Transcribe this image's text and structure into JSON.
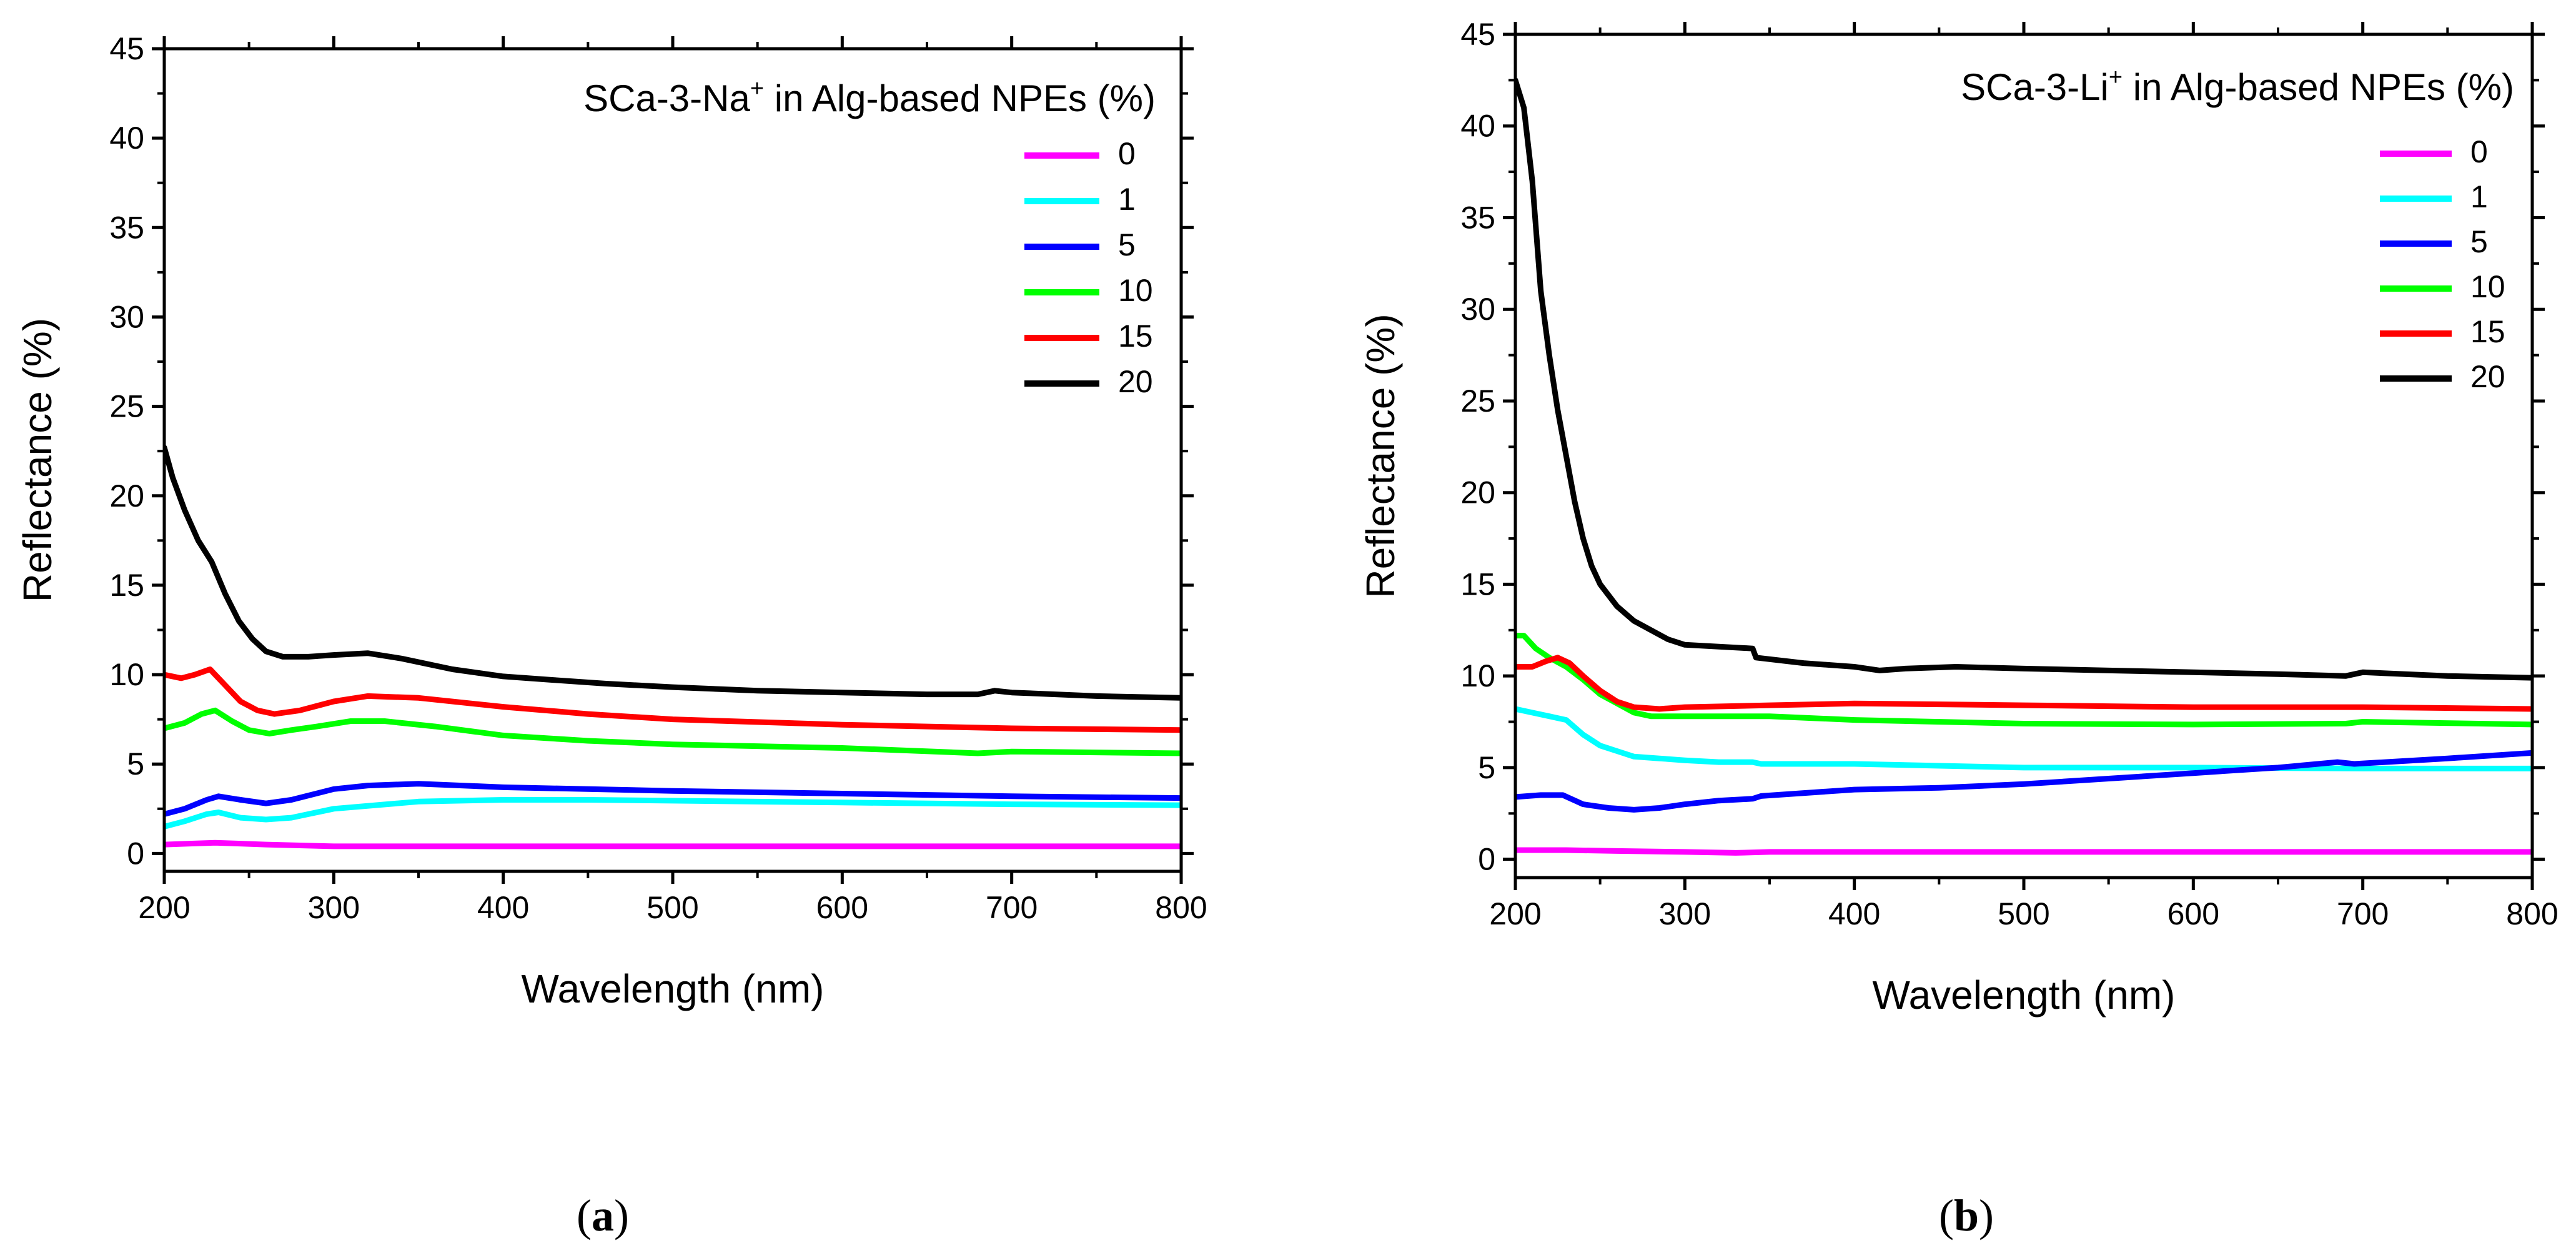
{
  "chart_data": [
    {
      "type": "line",
      "panel_label": "a",
      "title": "SCa-3-Na",
      "title_superscript": "+",
      "title_suffix": " in Alg-based NPEs (%)",
      "xlabel": "Wavelength (nm)",
      "ylabel": "Reflectance (%)",
      "xlim": [
        200,
        800
      ],
      "ylim": [
        -1,
        45
      ],
      "xticks": [
        200,
        300,
        400,
        500,
        600,
        700,
        800
      ],
      "yticks": [
        0,
        5,
        10,
        15,
        20,
        25,
        30,
        35,
        40,
        45
      ],
      "legend_position": "top-right",
      "series": [
        {
          "name": "0",
          "color": "#ff00ff",
          "x": [
            200,
            215,
            230,
            245,
            260,
            300,
            350,
            400,
            500,
            600,
            700,
            800
          ],
          "y": [
            0.5,
            0.55,
            0.6,
            0.55,
            0.5,
            0.4,
            0.4,
            0.4,
            0.4,
            0.4,
            0.4,
            0.4
          ]
        },
        {
          "name": "1",
          "color": "#00ffff",
          "x": [
            200,
            212,
            225,
            232,
            245,
            260,
            275,
            300,
            350,
            400,
            450,
            500,
            600,
            700,
            800
          ],
          "y": [
            1.5,
            1.8,
            2.2,
            2.3,
            2.0,
            1.9,
            2.0,
            2.5,
            2.9,
            3.0,
            3.0,
            2.95,
            2.85,
            2.75,
            2.7
          ]
        },
        {
          "name": "5",
          "color": "#0000ff",
          "x": [
            200,
            212,
            225,
            232,
            245,
            260,
            275,
            300,
            320,
            350,
            400,
            500,
            600,
            700,
            800
          ],
          "y": [
            2.2,
            2.5,
            3.0,
            3.2,
            3.0,
            2.8,
            3.0,
            3.6,
            3.8,
            3.9,
            3.7,
            3.5,
            3.35,
            3.2,
            3.1
          ]
        },
        {
          "name": "10",
          "color": "#00ff00",
          "x": [
            200,
            212,
            222,
            230,
            240,
            250,
            262,
            275,
            290,
            310,
            330,
            360,
            400,
            450,
            500,
            600,
            680,
            700,
            800
          ],
          "y": [
            7.0,
            7.3,
            7.8,
            8.0,
            7.4,
            6.9,
            6.7,
            6.9,
            7.1,
            7.4,
            7.4,
            7.1,
            6.6,
            6.3,
            6.1,
            5.9,
            5.6,
            5.7,
            5.6
          ]
        },
        {
          "name": "15",
          "color": "#ff0000",
          "x": [
            200,
            210,
            218,
            227,
            235,
            245,
            255,
            265,
            280,
            300,
            320,
            350,
            400,
            450,
            500,
            600,
            700,
            800
          ],
          "y": [
            10.0,
            9.8,
            10.0,
            10.3,
            9.5,
            8.5,
            8.0,
            7.8,
            8.0,
            8.5,
            8.8,
            8.7,
            8.2,
            7.8,
            7.5,
            7.2,
            7.0,
            6.9
          ]
        },
        {
          "name": "20",
          "color": "#000000",
          "x": [
            200,
            205,
            212,
            220,
            228,
            236,
            244,
            252,
            260,
            270,
            285,
            300,
            320,
            340,
            370,
            400,
            430,
            460,
            500,
            550,
            600,
            650,
            680,
            690,
            700,
            750,
            800
          ],
          "y": [
            22.7,
            21.0,
            19.2,
            17.5,
            16.3,
            14.5,
            13.0,
            12.0,
            11.3,
            11.0,
            11.0,
            11.1,
            11.2,
            10.9,
            10.3,
            9.9,
            9.7,
            9.5,
            9.3,
            9.1,
            9.0,
            8.9,
            8.9,
            9.1,
            9.0,
            8.8,
            8.7
          ]
        }
      ]
    },
    {
      "type": "line",
      "panel_label": "b",
      "title": "SCa-3-Li",
      "title_superscript": "+",
      "title_suffix": " in Alg-based NPEs (%)",
      "xlabel": "Wavelength (nm)",
      "ylabel": "Reflectance (%)",
      "xlim": [
        200,
        800
      ],
      "ylim": [
        -1,
        45
      ],
      "xticks": [
        200,
        300,
        400,
        500,
        600,
        700,
        800
      ],
      "yticks": [
        0,
        5,
        10,
        15,
        20,
        25,
        30,
        35,
        40,
        45
      ],
      "legend_position": "top-right",
      "series": [
        {
          "name": "0",
          "color": "#ff00ff",
          "x": [
            200,
            230,
            260,
            300,
            330,
            350,
            400,
            500,
            600,
            700,
            800
          ],
          "y": [
            0.5,
            0.5,
            0.45,
            0.4,
            0.35,
            0.4,
            0.4,
            0.4,
            0.4,
            0.4,
            0.4
          ]
        },
        {
          "name": "1",
          "color": "#00ffff",
          "x": [
            200,
            210,
            220,
            230,
            240,
            250,
            260,
            270,
            285,
            300,
            320,
            340,
            345,
            400,
            500,
            600,
            700,
            800
          ],
          "y": [
            8.2,
            8.0,
            7.8,
            7.6,
            6.8,
            6.2,
            5.9,
            5.6,
            5.5,
            5.4,
            5.3,
            5.3,
            5.2,
            5.2,
            5.0,
            5.0,
            4.95,
            4.95
          ]
        },
        {
          "name": "5",
          "color": "#0000ff",
          "x": [
            200,
            215,
            228,
            240,
            255,
            270,
            285,
            300,
            320,
            340,
            345,
            400,
            450,
            500,
            550,
            600,
            650,
            685,
            695,
            750,
            800
          ],
          "y": [
            3.4,
            3.5,
            3.5,
            3.0,
            2.8,
            2.7,
            2.8,
            3.0,
            3.2,
            3.3,
            3.45,
            3.8,
            3.9,
            4.1,
            4.4,
            4.7,
            5.0,
            5.3,
            5.2,
            5.5,
            5.8
          ]
        },
        {
          "name": "10",
          "color": "#00ff00",
          "x": [
            200,
            205,
            212,
            220,
            230,
            240,
            250,
            260,
            270,
            280,
            300,
            350,
            400,
            500,
            600,
            690,
            700,
            800
          ],
          "y": [
            12.2,
            12.2,
            11.5,
            11.0,
            10.5,
            9.8,
            9.0,
            8.5,
            8.0,
            7.8,
            7.8,
            7.8,
            7.6,
            7.4,
            7.35,
            7.4,
            7.5,
            7.35
          ]
        },
        {
          "name": "15",
          "color": "#ff0000",
          "x": [
            200,
            210,
            218,
            225,
            232,
            240,
            250,
            260,
            270,
            285,
            300,
            350,
            400,
            500,
            600,
            700,
            800
          ],
          "y": [
            10.5,
            10.5,
            10.8,
            11.0,
            10.7,
            10.0,
            9.2,
            8.6,
            8.3,
            8.2,
            8.3,
            8.4,
            8.5,
            8.4,
            8.3,
            8.3,
            8.2
          ]
        },
        {
          "name": "20",
          "color": "#000000",
          "x": [
            200,
            205,
            210,
            215,
            220,
            225,
            230,
            235,
            240,
            245,
            250,
            260,
            270,
            280,
            290,
            300,
            320,
            340,
            342,
            370,
            400,
            415,
            430,
            460,
            500,
            550,
            600,
            650,
            690,
            700,
            750,
            800
          ],
          "y": [
            42.5,
            41.0,
            37.0,
            31.0,
            27.5,
            24.5,
            22.0,
            19.5,
            17.5,
            16.0,
            15.0,
            13.8,
            13.0,
            12.5,
            12.0,
            11.7,
            11.6,
            11.5,
            11.0,
            10.7,
            10.5,
            10.3,
            10.4,
            10.5,
            10.4,
            10.3,
            10.2,
            10.1,
            10.0,
            10.2,
            10.0,
            9.9
          ]
        }
      ]
    }
  ]
}
